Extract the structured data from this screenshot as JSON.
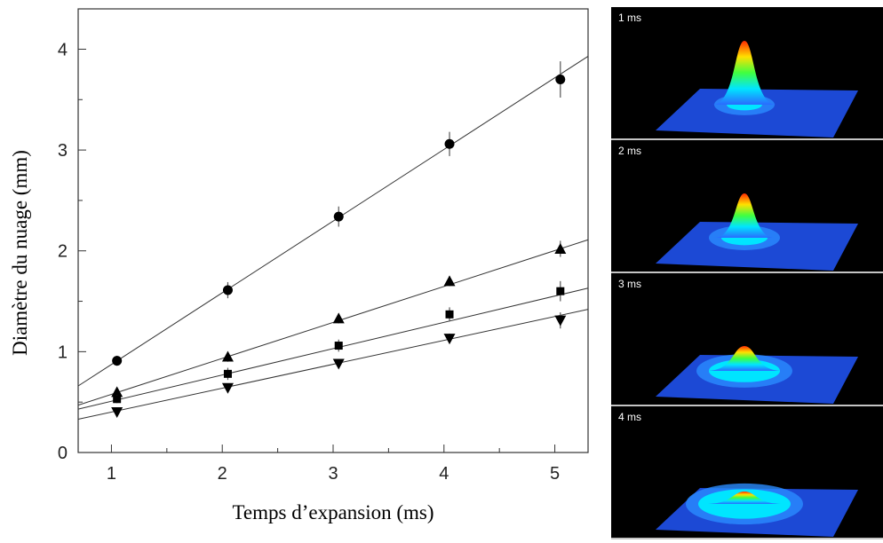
{
  "chart_data": {
    "type": "scatter",
    "xlabel": "Temps d’expansion (ms)",
    "ylabel": "Diamètre du nuage (mm)",
    "xlim": [
      0.7,
      5.3
    ],
    "ylim": [
      0,
      4.4
    ],
    "xticks": [
      1,
      2,
      3,
      4,
      5
    ],
    "yticks": [
      0,
      1,
      2,
      3,
      4
    ],
    "xminor_ticks": [
      1.5,
      2.5,
      3.5,
      4.5
    ],
    "yminor_ticks": [
      0.5,
      1.5,
      2.5,
      3.5
    ],
    "x": [
      1.05,
      2.05,
      3.05,
      4.05,
      5.05
    ],
    "series": [
      {
        "marker": "circle",
        "color": "#000000",
        "values": [
          0.91,
          1.61,
          2.34,
          3.06,
          3.7
        ],
        "errors": [
          0.05,
          0.08,
          0.1,
          0.12,
          0.18
        ],
        "fit_x": [
          0.7,
          5.3
        ],
        "fit_y": [
          0.66,
          3.93
        ]
      },
      {
        "marker": "triangle-up",
        "color": "#000000",
        "values": [
          0.6,
          0.95,
          1.33,
          1.7,
          2.02
        ],
        "errors": [
          0.03,
          0.05,
          0.05,
          0.05,
          0.08
        ],
        "fit_x": [
          0.7,
          5.3
        ],
        "fit_y": [
          0.47,
          2.11
        ]
      },
      {
        "marker": "square",
        "color": "#000000",
        "values": [
          0.53,
          0.78,
          1.06,
          1.37,
          1.6
        ],
        "errors": [
          0.04,
          0.06,
          0.06,
          0.07,
          0.1
        ],
        "fit_x": [
          0.7,
          5.3
        ],
        "fit_y": [
          0.43,
          1.63
        ]
      },
      {
        "marker": "triangle-down",
        "color": "#000000",
        "values": [
          0.4,
          0.64,
          0.88,
          1.13,
          1.31
        ],
        "errors": [
          0.03,
          0.04,
          0.04,
          0.05,
          0.08
        ],
        "fit_x": [
          0.7,
          5.3
        ],
        "fit_y": [
          0.33,
          1.42
        ]
      }
    ]
  },
  "panels": [
    "1 ms",
    "2 ms",
    "3 ms",
    "4 ms"
  ]
}
